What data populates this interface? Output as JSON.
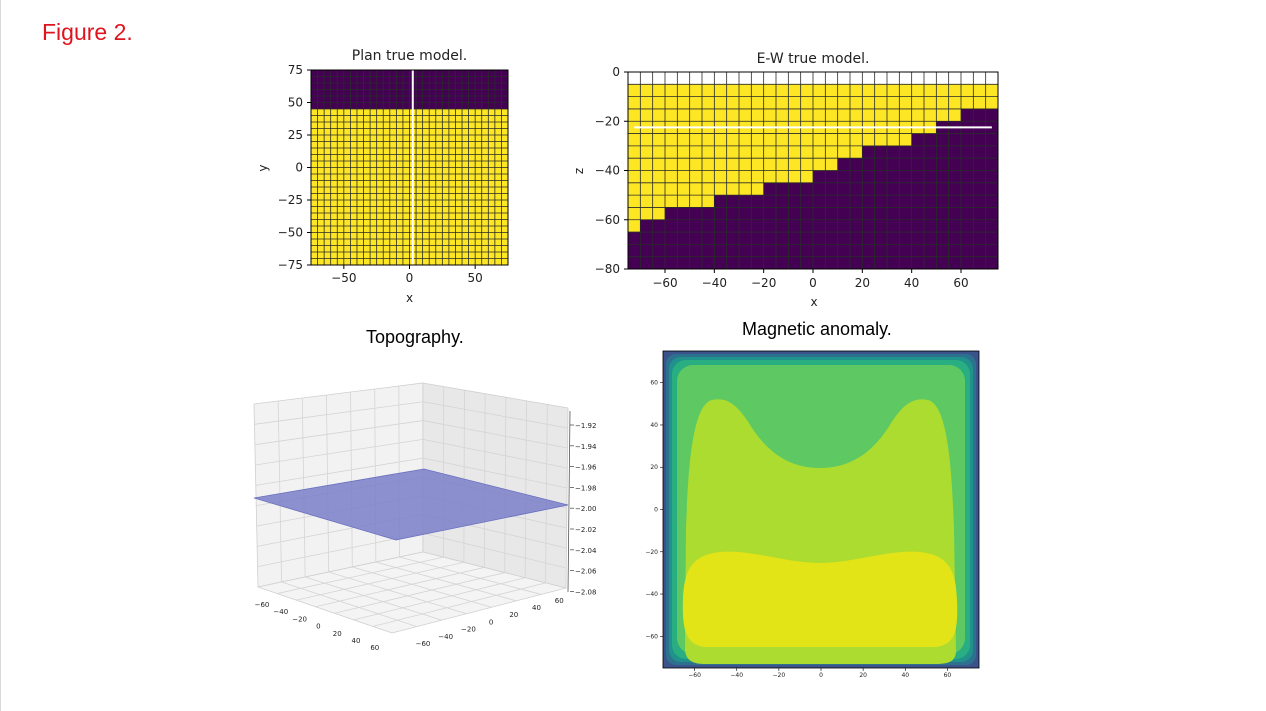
{
  "figure_label": "Figure 2.",
  "chart_data": [
    {
      "type": "heatmap",
      "title": "Plan true model.",
      "xlabel": "x",
      "ylabel": "y",
      "xlim": [
        -75,
        75
      ],
      "ylim": [
        -75,
        75
      ],
      "xticks": [
        -50,
        0,
        50
      ],
      "yticks": [
        75,
        50,
        25,
        0,
        -25,
        -50,
        -75
      ],
      "cell_size": 5,
      "boundary_y": 45,
      "profile_x": 2.5,
      "regions": [
        {
          "range_y": [
            45,
            75
          ],
          "color": "#440154"
        },
        {
          "range_y": [
            -75,
            45
          ],
          "color": "#fde725"
        }
      ]
    },
    {
      "type": "heatmap",
      "title": "E-W true model.",
      "xlabel": "x",
      "ylabel": "z",
      "xlim": [
        -75,
        75
      ],
      "ylim": [
        -80,
        0
      ],
      "xticks": [
        -60,
        -40,
        -20,
        0,
        20,
        40,
        60
      ],
      "yticks": [
        0,
        -20,
        -40,
        -60,
        -80
      ],
      "cell_size": 5,
      "air_depth": -5,
      "profile_z": -22.5,
      "profile_xrange": [
        -72.5,
        72.5
      ],
      "interface_x": [
        -75,
        -70,
        -60,
        -50,
        -40,
        -30,
        -20,
        -10,
        0,
        10,
        20,
        30,
        40,
        50,
        60,
        70,
        75
      ],
      "interface_z": [
        -65,
        -60,
        -55,
        -55,
        -50,
        -50,
        -45,
        -45,
        -40,
        -35,
        -30,
        -30,
        -25,
        -20,
        -15,
        -15,
        -15
      ],
      "colors": {
        "air": "#ffffff",
        "top": "#fde725",
        "bottom": "#440154"
      }
    },
    {
      "type": "surface3d",
      "title": "Topography.",
      "x_ticks": [
        -60,
        -40,
        -20,
        0,
        20,
        40,
        60
      ],
      "y_ticks": [
        -60,
        -40,
        -20,
        0,
        20,
        40,
        60
      ],
      "z_ticks": [
        "−1.92",
        "−1.94",
        "−1.96",
        "−1.98",
        "−2.00",
        "−2.02",
        "−2.04",
        "−2.06",
        "−2.08"
      ],
      "surface_z": -2.0,
      "surface_color": "#7b7fc8"
    },
    {
      "type": "contour",
      "title": "Magnetic anomaly.",
      "xlim": [
        -75,
        75
      ],
      "ylim": [
        -75,
        75
      ],
      "xticks": [
        -60,
        -40,
        -20,
        0,
        20,
        40,
        60
      ],
      "yticks": [
        60,
        40,
        20,
        0,
        -20,
        -40,
        -60
      ],
      "levels_colors": [
        "#3b528b",
        "#2c728e",
        "#21918c",
        "#28ae80",
        "#5ec962",
        "#addc30",
        "#e3e418"
      ]
    }
  ]
}
